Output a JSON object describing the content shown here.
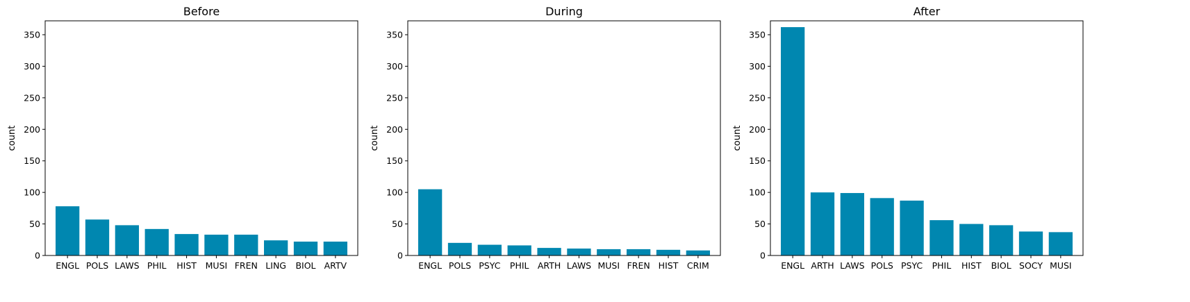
{
  "colors": {
    "bar": "#0087B0",
    "axis": "#000000",
    "background": "#ffffff"
  },
  "chart_data": [
    {
      "type": "bar",
      "title": "Before",
      "ylabel": "count",
      "xlabel": "",
      "ylim": [
        0,
        372
      ],
      "yticks": [
        0,
        50,
        100,
        150,
        200,
        250,
        300,
        350
      ],
      "categories": [
        "ENGL",
        "POLS",
        "LAWS",
        "PHIL",
        "HIST",
        "MUSI",
        "FREN",
        "LING",
        "BIOL",
        "ARTV"
      ],
      "values": [
        78,
        57,
        48,
        42,
        34,
        33,
        33,
        24,
        22,
        22
      ]
    },
    {
      "type": "bar",
      "title": "During",
      "ylabel": "count",
      "xlabel": "",
      "ylim": [
        0,
        372
      ],
      "yticks": [
        0,
        50,
        100,
        150,
        200,
        250,
        300,
        350
      ],
      "categories": [
        "ENGL",
        "POLS",
        "PSYC",
        "PHIL",
        "ARTH",
        "LAWS",
        "MUSI",
        "FREN",
        "HIST",
        "CRIM"
      ],
      "values": [
        105,
        20,
        17,
        16,
        12,
        11,
        10,
        10,
        9,
        8
      ]
    },
    {
      "type": "bar",
      "title": "After",
      "ylabel": "count",
      "xlabel": "",
      "ylim": [
        0,
        372
      ],
      "yticks": [
        0,
        50,
        100,
        150,
        200,
        250,
        300,
        350
      ],
      "categories": [
        "ENGL",
        "ARTH",
        "LAWS",
        "POLS",
        "PSYC",
        "PHIL",
        "HIST",
        "BIOL",
        "SOCY",
        "MUSI"
      ],
      "values": [
        362,
        100,
        99,
        91,
        87,
        56,
        50,
        48,
        38,
        37
      ]
    }
  ]
}
